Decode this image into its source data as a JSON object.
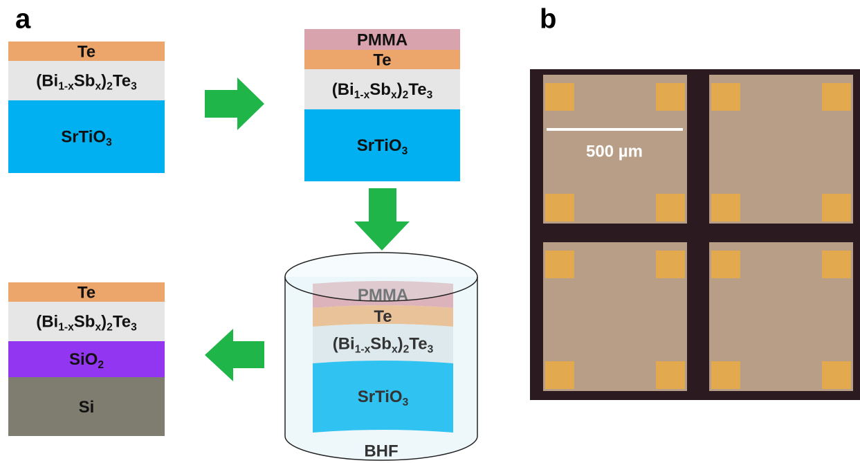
{
  "panel_a": {
    "label": "a",
    "stack_initial": {
      "layers": [
        {
          "label": "Te"
        },
        {
          "label": {
            "segments": [
              {
                "text": "(Bi"
              },
              {
                "sub": "1-x"
              },
              {
                "text": "Sb"
              },
              {
                "sub": "x"
              },
              {
                "text": ")"
              },
              {
                "sub": "2"
              },
              {
                "text": "Te"
              },
              {
                "sub": "3"
              }
            ]
          }
        },
        {
          "label": {
            "segments": [
              {
                "text": "SrTiO"
              },
              {
                "sub": "3"
              }
            ]
          }
        }
      ]
    },
    "stack_pmma": {
      "layers": [
        {
          "label": "PMMA"
        },
        {
          "label": "Te"
        },
        {
          "label": {
            "segments": [
              {
                "text": "(Bi"
              },
              {
                "sub": "1-x"
              },
              {
                "text": "Sb"
              },
              {
                "sub": "x"
              },
              {
                "text": ")"
              },
              {
                "sub": "2"
              },
              {
                "text": "Te"
              },
              {
                "sub": "3"
              }
            ]
          }
        },
        {
          "label": {
            "segments": [
              {
                "text": "SrTiO"
              },
              {
                "sub": "3"
              }
            ]
          }
        }
      ]
    },
    "beaker": {
      "label": "BHF",
      "layers": [
        {
          "label": "PMMA"
        },
        {
          "label": "Te"
        },
        {
          "label": {
            "segments": [
              {
                "text": "(Bi"
              },
              {
                "sub": "1-x"
              },
              {
                "text": "Sb"
              },
              {
                "sub": "x"
              },
              {
                "text": ")"
              },
              {
                "sub": "2"
              },
              {
                "text": "Te"
              },
              {
                "sub": "3"
              }
            ]
          }
        },
        {
          "label": {
            "segments": [
              {
                "text": "SrTiO"
              },
              {
                "sub": "3"
              }
            ]
          }
        }
      ]
    },
    "stack_final": {
      "layers": [
        {
          "label": "Te"
        },
        {
          "label": {
            "segments": [
              {
                "text": "(Bi"
              },
              {
                "sub": "1-x"
              },
              {
                "text": "Sb"
              },
              {
                "sub": "x"
              },
              {
                "text": ")"
              },
              {
                "sub": "2"
              },
              {
                "text": "Te"
              },
              {
                "sub": "3"
              }
            ]
          }
        },
        {
          "label": {
            "segments": [
              {
                "text": "SiO"
              },
              {
                "sub": "2"
              }
            ]
          }
        },
        {
          "label": "Si"
        }
      ]
    }
  },
  "panel_b": {
    "label": "b",
    "scale_bar": "500 µm"
  }
}
